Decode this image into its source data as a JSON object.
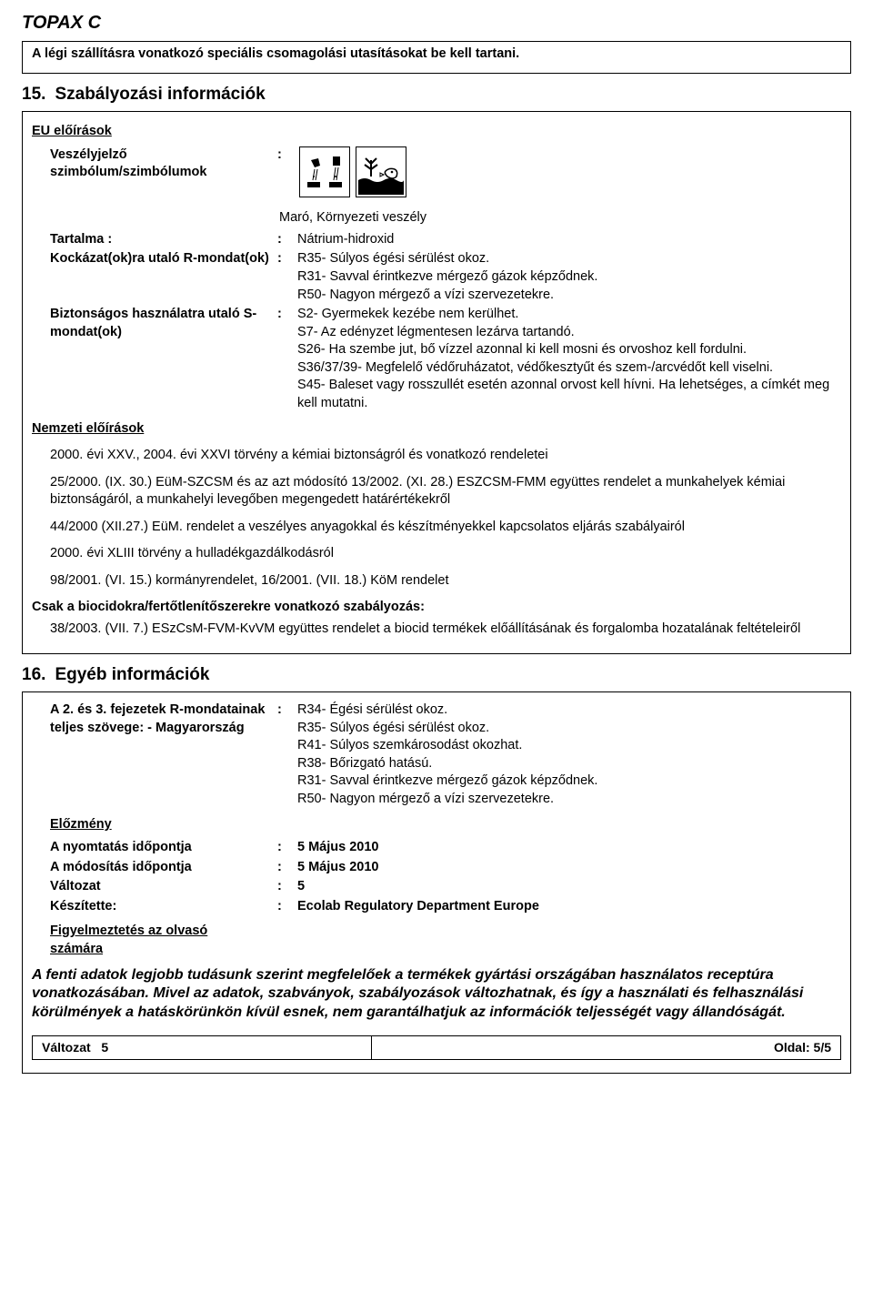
{
  "doc": {
    "title": "TOPAX C"
  },
  "air_note": "A légi szállításra vonatkozó speciális csomagolási utasításokat be kell tartani.",
  "s15": {
    "num": "15.",
    "title": "Szabályozási információk",
    "eu_heading": "EU előírások",
    "hazard_label": "Veszélyjelző szimbólum/szimbólumok",
    "hazard_label_colon": ":",
    "hazard_text": "Maró, Környezeti veszély",
    "contains_label": "Tartalma :",
    "contains_value": "Nátrium-hidroxid",
    "r_label": "Kockázat(ok)ra utaló R-mondat(ok)",
    "r_value": "R35- Súlyos égési sérülést okoz.\nR31- Savval érintkezve mérgező gázok képződnek.\nR50- Nagyon mérgező a vízi szervezetekre.",
    "s_label": "Biztonságos használatra utaló S-mondat(ok)",
    "s_value": "S2- Gyermekek kezébe nem kerülhet.\nS7- Az edényzet légmentesen lezárva tartandó.\nS26- Ha szembe jut, bő vízzel azonnal ki kell mosni és orvoshoz kell fordulni.\nS36/37/39- Megfelelő védőruházatot, védőkesztyűt és szem-/arcvédőt kell viselni.\nS45- Baleset vagy rosszullét esetén azonnal orvost kell hívni. Ha lehetséges, a címkét meg kell mutatni.",
    "nat_heading": "Nemzeti előírások",
    "regs": [
      "2000. évi XXV., 2004. évi XXVI törvény a kémiai biztonságról és vonatkozó rendeletei",
      "25/2000. (IX. 30.) EüM-SZCSM és az azt módosító 13/2002. (XI. 28.) ESZCSM-FMM együttes rendelet a munkahelyek kémiai biztonságáról, a munkahelyi levegőben megengedett határértékekről",
      "44/2000 (XII.27.) EüM. rendelet a veszélyes anyagokkal és készítményekkel kapcsolatos eljárás szabályairól",
      "2000. évi XLIII törvény a hulladékgazdálkodásról",
      "98/2001. (VI. 15.) kormányrendelet, 16/2001. (VII. 18.) KöM rendelet"
    ],
    "biocide_heading": "Csak a biocidokra/fertőtlenítőszerekre vonatkozó szabályozás:",
    "biocide_reg": "38/2003. (VII. 7.) ESzCsM-FVM-KvVM együttes rendelet a biocid termékek előállításának és forgalomba hozatalának feltételeiről"
  },
  "s16": {
    "num": "16.",
    "title": "Egyéb információk",
    "rtxt_label": "A 2. és 3. fejezetek R-mondatainak teljes szövege: - Magyarország",
    "rtxt_value": "R34- Égési sérülést okoz.\nR35- Súlyos égési sérülést okoz.\nR41- Súlyos szemkárosodást okozhat.\nR38- Bőrizgató hatású.\nR31- Savval érintkezve mérgező gázok képződnek.\nR50- Nagyon mérgező a vízi szervezetekre.",
    "history_heading": "Előzmény",
    "print_label": "A nyomtatás időpontja",
    "print_value": "5 Május 2010",
    "rev_label": "A módosítás időpontja",
    "rev_value": "5 Május 2010",
    "ver_label": "Változat",
    "ver_value": "5",
    "prep_label": "Készítette:",
    "prep_value": "Ecolab Regulatory Department Europe",
    "reader_heading": "Figyelmeztetés az olvasó számára",
    "disclaimer": "A fenti adatok legjobb tudásunk szerint megfelelőek a termékek gyártási országában használatos receptúra vonatkozásában. Mivel az adatok, szabványok, szabályozások változhatnak, és így a használati és felhasználási körülmények a hatáskörünkön kívül esnek, nem garantálhatjuk az információk teljességét vagy állandóságát."
  },
  "footer": {
    "left_label": "Változat",
    "left_val": "5",
    "right_label": "Oldal:",
    "right_val": "5/5"
  }
}
